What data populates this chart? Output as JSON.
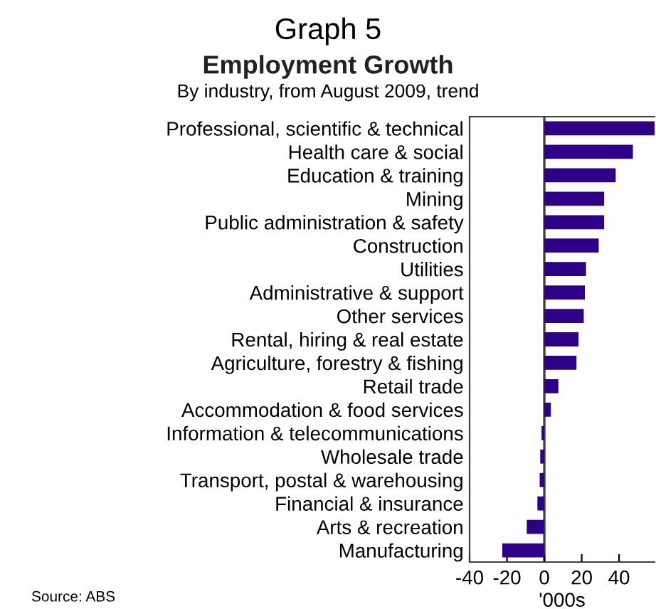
{
  "chart_data": {
    "type": "bar",
    "orientation": "horizontal",
    "title": "Graph 5",
    "subtitle": "Employment Growth\nBy industry, from August 2009, trend",
    "xlabel": "'000s",
    "categories": [
      "Professional, scientific & technical",
      "Health care & social",
      "Education & training",
      "Mining",
      "Public administration & safety",
      "Construction",
      "Utilities",
      "Administrative & support",
      "Other services",
      "Rental, hiring & real estate",
      "Agriculture, forestry & fishing",
      "Retail trade",
      "Accommodation & food services",
      "Information & telecommunications",
      "Wholesale trade",
      "Transport, postal & warehousing",
      "Financial & insurance",
      "Arts & recreation",
      "Manufacturing"
    ],
    "values": [
      59,
      47.4,
      38.2,
      32,
      32,
      29.1,
      22.3,
      21.7,
      21.1,
      18.3,
      17.2,
      7.5,
      3.5,
      -1.5,
      -2.2,
      -2.5,
      -3.7,
      -9.4,
      -22.5
    ],
    "color": "#2e0087",
    "xlim": [
      -40,
      59
    ],
    "xticks": [
      -40,
      -20,
      0,
      20,
      40
    ],
    "ref_lines": [
      {
        "axis": "x",
        "value": 0,
        "color": "#404040"
      }
    ],
    "annotations": [
      "Source: ABS"
    ],
    "grid": false,
    "legend": false
  }
}
